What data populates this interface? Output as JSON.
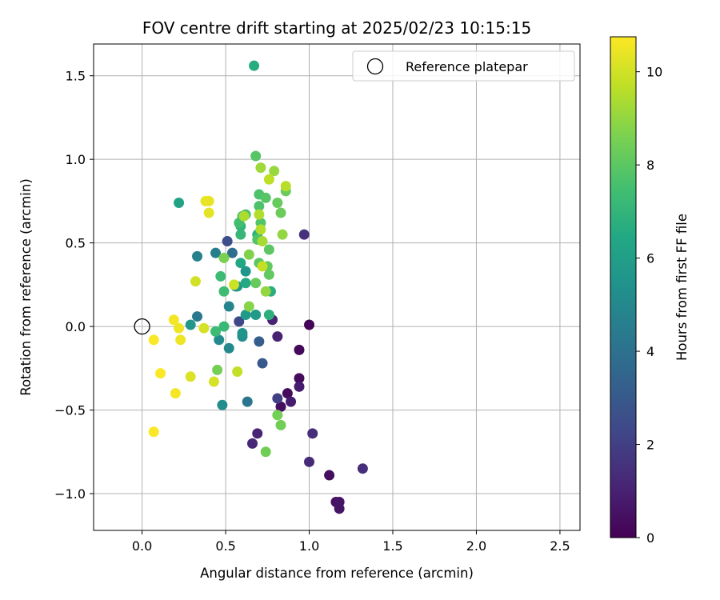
{
  "chart_data": {
    "type": "scatter",
    "title": "FOV centre drift starting at 2025/02/23 10:15:15",
    "xlabel": "Angular distance from reference (arcmin)",
    "ylabel": "Rotation from reference (arcmin)",
    "xlim": [
      -0.29,
      2.62
    ],
    "ylim": [
      -1.22,
      1.69
    ],
    "x_ticks": [
      0.0,
      0.5,
      1.0,
      1.5,
      2.0,
      2.5
    ],
    "x_tick_labels": [
      "0.0",
      "0.5",
      "1.0",
      "1.5",
      "2.0",
      "2.5"
    ],
    "y_ticks": [
      -1.0,
      -0.5,
      0.0,
      0.5,
      1.0,
      1.5
    ],
    "y_tick_labels": [
      "−1.0",
      "−0.5",
      "0.0",
      "0.5",
      "1.0",
      "1.5"
    ],
    "grid": true,
    "legend": {
      "position": "top-right",
      "entries": [
        "Reference platepar"
      ]
    },
    "reference_point": {
      "x": 0.0,
      "y": 0.0,
      "marker": "open-circle",
      "color": "#000000"
    },
    "colorbar": {
      "label": "Hours from first FF file",
      "range": [
        0,
        10.75
      ],
      "ticks": [
        0,
        2,
        4,
        6,
        8,
        10
      ],
      "tick_labels": [
        "0",
        "2",
        "4",
        "6",
        "8",
        "10"
      ],
      "colormap": "viridis"
    },
    "points": [
      {
        "x": 1.0,
        "y": 0.01,
        "h": 0.1
      },
      {
        "x": 0.94,
        "y": -0.14,
        "h": 0.2
      },
      {
        "x": 0.94,
        "y": -0.31,
        "h": 0.3
      },
      {
        "x": 0.87,
        "y": -0.4,
        "h": 0.3
      },
      {
        "x": 0.83,
        "y": -0.48,
        "h": 0.4
      },
      {
        "x": 1.12,
        "y": -0.89,
        "h": 0.4
      },
      {
        "x": 1.16,
        "y": -1.05,
        "h": 0.5
      },
      {
        "x": 1.18,
        "y": -1.05,
        "h": 0.6
      },
      {
        "x": 1.18,
        "y": -1.09,
        "h": 0.6
      },
      {
        "x": 0.94,
        "y": -0.36,
        "h": 0.8
      },
      {
        "x": 0.89,
        "y": -0.45,
        "h": 0.8
      },
      {
        "x": 0.81,
        "y": -0.06,
        "h": 1.0
      },
      {
        "x": 0.78,
        "y": 0.04,
        "h": 1.0
      },
      {
        "x": 0.69,
        "y": -0.64,
        "h": 1.1
      },
      {
        "x": 0.66,
        "y": -0.7,
        "h": 1.2
      },
      {
        "x": 1.0,
        "y": -0.81,
        "h": 1.3
      },
      {
        "x": 1.02,
        "y": -0.64,
        "h": 1.4
      },
      {
        "x": 1.32,
        "y": -0.85,
        "h": 1.4
      },
      {
        "x": 0.97,
        "y": 0.55,
        "h": 1.5
      },
      {
        "x": 0.81,
        "y": -0.43,
        "h": 2.0
      },
      {
        "x": 0.58,
        "y": 0.03,
        "h": 2.3
      },
      {
        "x": 0.51,
        "y": 0.51,
        "h": 2.6
      },
      {
        "x": 0.72,
        "y": -0.22,
        "h": 3.0
      },
      {
        "x": 0.7,
        "y": -0.09,
        "h": 3.2
      },
      {
        "x": 0.54,
        "y": 0.44,
        "h": 3.9
      },
      {
        "x": 0.63,
        "y": -0.45,
        "h": 4.2
      },
      {
        "x": 0.33,
        "y": 0.06,
        "h": 4.3
      },
      {
        "x": 0.44,
        "y": 0.44,
        "h": 4.6
      },
      {
        "x": 0.33,
        "y": 0.42,
        "h": 4.7
      },
      {
        "x": 0.52,
        "y": 0.12,
        "h": 4.8
      },
      {
        "x": 0.56,
        "y": 0.24,
        "h": 4.8
      },
      {
        "x": 0.52,
        "y": -0.13,
        "h": 5.0
      },
      {
        "x": 0.46,
        "y": -0.08,
        "h": 5.1
      },
      {
        "x": 0.48,
        "y": -0.47,
        "h": 5.2
      },
      {
        "x": 0.6,
        "y": -0.06,
        "h": 5.3
      },
      {
        "x": 0.6,
        "y": -0.04,
        "h": 5.5
      },
      {
        "x": 0.62,
        "y": 0.33,
        "h": 5.6
      },
      {
        "x": 0.57,
        "y": 0.24,
        "h": 5.6
      },
      {
        "x": 0.29,
        "y": 0.01,
        "h": 5.7
      },
      {
        "x": 0.62,
        "y": 0.07,
        "h": 5.8
      },
      {
        "x": 0.68,
        "y": 0.07,
        "h": 5.8
      },
      {
        "x": 0.22,
        "y": 0.74,
        "h": 6.2
      },
      {
        "x": 0.59,
        "y": 0.38,
        "h": 6.4
      },
      {
        "x": 0.62,
        "y": 0.26,
        "h": 6.5
      },
      {
        "x": 0.67,
        "y": 1.56,
        "h": 6.6
      },
      {
        "x": 0.77,
        "y": 0.21,
        "h": 6.7
      },
      {
        "x": 0.76,
        "y": 0.07,
        "h": 6.8
      },
      {
        "x": 0.69,
        "y": 0.55,
        "h": 6.9
      },
      {
        "x": 0.59,
        "y": 0.6,
        "h": 7.0
      },
      {
        "x": 0.59,
        "y": 0.55,
        "h": 7.1
      },
      {
        "x": 0.49,
        "y": 0.0,
        "h": 7.2
      },
      {
        "x": 0.44,
        "y": -0.03,
        "h": 7.3
      },
      {
        "x": 0.47,
        "y": 0.3,
        "h": 7.3
      },
      {
        "x": 0.49,
        "y": 0.21,
        "h": 7.4
      },
      {
        "x": 0.58,
        "y": 0.62,
        "h": 7.5
      },
      {
        "x": 0.6,
        "y": 0.66,
        "h": 7.6
      },
      {
        "x": 0.62,
        "y": 0.67,
        "h": 7.6
      },
      {
        "x": 0.7,
        "y": 0.72,
        "h": 7.7
      },
      {
        "x": 0.7,
        "y": 0.79,
        "h": 7.7
      },
      {
        "x": 0.71,
        "y": 0.62,
        "h": 7.8
      },
      {
        "x": 0.69,
        "y": 0.52,
        "h": 7.8
      },
      {
        "x": 0.68,
        "y": 1.02,
        "h": 7.9
      },
      {
        "x": 0.74,
        "y": 0.77,
        "h": 7.9
      },
      {
        "x": 0.76,
        "y": 0.46,
        "h": 8.0
      },
      {
        "x": 0.7,
        "y": 0.38,
        "h": 8.0
      },
      {
        "x": 0.75,
        "y": 0.36,
        "h": 8.1
      },
      {
        "x": 0.76,
        "y": 0.31,
        "h": 8.1
      },
      {
        "x": 0.68,
        "y": 0.26,
        "h": 8.2
      },
      {
        "x": 0.81,
        "y": 0.74,
        "h": 8.2
      },
      {
        "x": 0.86,
        "y": 0.81,
        "h": 8.3
      },
      {
        "x": 0.83,
        "y": 0.68,
        "h": 8.3
      },
      {
        "x": 0.74,
        "y": -0.75,
        "h": 8.4
      },
      {
        "x": 0.83,
        "y": -0.59,
        "h": 8.4
      },
      {
        "x": 0.81,
        "y": -0.53,
        "h": 8.5
      },
      {
        "x": 0.45,
        "y": -0.26,
        "h": 8.5
      },
      {
        "x": 0.49,
        "y": 0.41,
        "h": 8.6
      },
      {
        "x": 0.64,
        "y": 0.43,
        "h": 8.7
      },
      {
        "x": 0.64,
        "y": 0.12,
        "h": 8.8
      },
      {
        "x": 0.74,
        "y": 0.21,
        "h": 9.0
      },
      {
        "x": 0.84,
        "y": 0.55,
        "h": 9.0
      },
      {
        "x": 0.79,
        "y": 0.93,
        "h": 9.1
      },
      {
        "x": 0.71,
        "y": 0.95,
        "h": 9.2
      },
      {
        "x": 0.72,
        "y": 0.51,
        "h": 9.3
      },
      {
        "x": 0.61,
        "y": 0.66,
        "h": 9.4
      },
      {
        "x": 0.71,
        "y": 0.58,
        "h": 9.5
      },
      {
        "x": 0.7,
        "y": 0.67,
        "h": 9.5
      },
      {
        "x": 0.86,
        "y": 0.84,
        "h": 9.6
      },
      {
        "x": 0.76,
        "y": 0.88,
        "h": 9.7
      },
      {
        "x": 0.72,
        "y": 0.36,
        "h": 9.8
      },
      {
        "x": 0.57,
        "y": -0.27,
        "h": 9.8
      },
      {
        "x": 0.55,
        "y": 0.25,
        "h": 9.9
      },
      {
        "x": 0.32,
        "y": 0.27,
        "h": 10.0
      },
      {
        "x": 0.37,
        "y": -0.01,
        "h": 10.1
      },
      {
        "x": 0.43,
        "y": -0.33,
        "h": 10.1
      },
      {
        "x": 0.29,
        "y": -0.3,
        "h": 10.2
      },
      {
        "x": 0.4,
        "y": 0.68,
        "h": 10.3
      },
      {
        "x": 0.38,
        "y": 0.75,
        "h": 10.4
      },
      {
        "x": 0.4,
        "y": 0.75,
        "h": 10.4
      },
      {
        "x": 0.23,
        "y": -0.08,
        "h": 10.5
      },
      {
        "x": 0.22,
        "y": -0.01,
        "h": 10.5
      },
      {
        "x": 0.19,
        "y": 0.04,
        "h": 10.6
      },
      {
        "x": 0.2,
        "y": -0.4,
        "h": 10.6
      },
      {
        "x": 0.11,
        "y": -0.28,
        "h": 10.7
      },
      {
        "x": 0.07,
        "y": -0.08,
        "h": 10.7
      },
      {
        "x": 0.07,
        "y": -0.63,
        "h": 10.7
      }
    ]
  }
}
